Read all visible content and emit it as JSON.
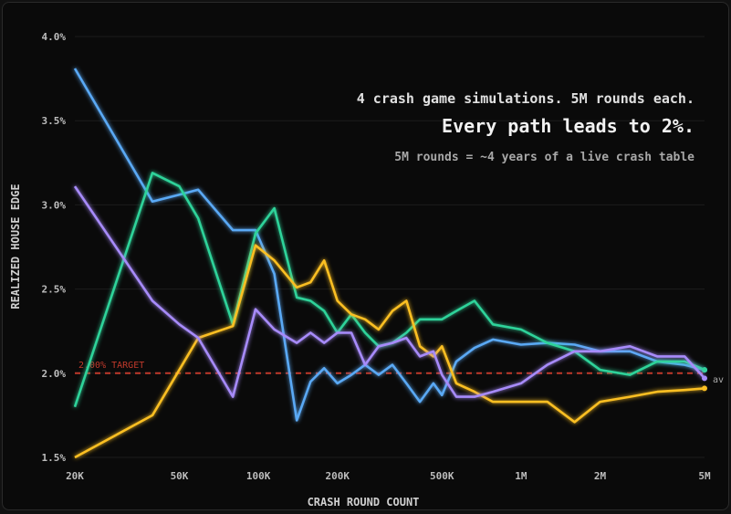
{
  "chart_data": {
    "type": "line",
    "title": "Every path leads to 2%.",
    "subtitle": "4 crash game simulations. 5M rounds each.",
    "caption": "5M rounds = ~4 years of a live crash table",
    "xlabel": "CRASH ROUND COUNT",
    "ylabel": "REALIZED HOUSE EDGE",
    "x_scale": "log",
    "xlim": [
      20000,
      5000000
    ],
    "ylim": [
      1.5,
      4.0
    ],
    "grid": true,
    "x_ticks": [
      {
        "v": 20000,
        "label": "20K"
      },
      {
        "v": 50000,
        "label": "50K"
      },
      {
        "v": 100000,
        "label": "100K"
      },
      {
        "v": 200000,
        "label": "200K"
      },
      {
        "v": 500000,
        "label": "500K"
      },
      {
        "v": 1000000,
        "label": "1M"
      },
      {
        "v": 2000000,
        "label": "2M"
      },
      {
        "v": 5000000,
        "label": "5M"
      }
    ],
    "y_ticks": [
      {
        "v": 1.5,
        "label": "1.5%"
      },
      {
        "v": 2.0,
        "label": "2.0%"
      },
      {
        "v": 2.5,
        "label": "2.5%"
      },
      {
        "v": 3.0,
        "label": "3.0%"
      },
      {
        "v": 3.5,
        "label": "3.5%"
      },
      {
        "v": 4.0,
        "label": "4.0%"
      }
    ],
    "target": {
      "value": 2.0,
      "label": "2.00% TARGET",
      "color": "#c0392b"
    },
    "end_label": "av",
    "x": [
      20000,
      39500,
      50000,
      59000,
      80000,
      97500,
      115000,
      140000,
      158000,
      178000,
      200000,
      226000,
      255000,
      287000,
      324000,
      366000,
      412000,
      464000,
      500000,
      567000,
      665000,
      782000,
      1000000,
      1260000,
      1600000,
      2000000,
      2600000,
      3300000,
      4200000,
      5000000
    ],
    "series": [
      {
        "color": "#5aa9f5",
        "values": [
          3.81,
          3.02,
          3.06,
          3.09,
          2.85,
          2.85,
          2.59,
          1.72,
          1.95,
          2.03,
          1.94,
          1.99,
          2.05,
          1.99,
          2.05,
          1.94,
          1.83,
          1.94,
          1.87,
          2.07,
          2.15,
          2.2,
          2.17,
          2.18,
          2.17,
          2.13,
          2.13,
          2.07,
          2.05,
          2.02
        ]
      },
      {
        "color": "#2fd39a",
        "values": [
          1.8,
          3.19,
          3.11,
          2.92,
          2.29,
          2.83,
          2.98,
          2.45,
          2.43,
          2.37,
          2.24,
          2.35,
          2.24,
          2.16,
          2.18,
          2.24,
          2.32,
          2.32,
          2.32,
          2.37,
          2.43,
          2.29,
          2.26,
          2.18,
          2.13,
          2.02,
          1.99,
          2.07,
          2.07,
          2.02
        ]
      },
      {
        "color": "#fbbf24",
        "values": [
          1.5,
          1.75,
          2.02,
          2.21,
          2.28,
          2.76,
          2.67,
          2.51,
          2.54,
          2.67,
          2.43,
          2.35,
          2.32,
          2.26,
          2.37,
          2.43,
          2.16,
          2.1,
          2.16,
          1.94,
          1.89,
          1.83,
          1.83,
          1.83,
          1.71,
          1.83,
          1.86,
          1.89,
          1.9,
          1.91
        ]
      },
      {
        "color": "#a78bfa",
        "values": [
          3.11,
          2.43,
          2.29,
          2.21,
          1.86,
          2.38,
          2.26,
          2.18,
          2.24,
          2.18,
          2.24,
          2.24,
          2.05,
          2.16,
          2.18,
          2.21,
          2.1,
          2.13,
          1.99,
          1.86,
          1.86,
          1.89,
          1.94,
          2.05,
          2.13,
          2.13,
          2.16,
          2.1,
          2.1,
          1.97
        ]
      }
    ]
  }
}
